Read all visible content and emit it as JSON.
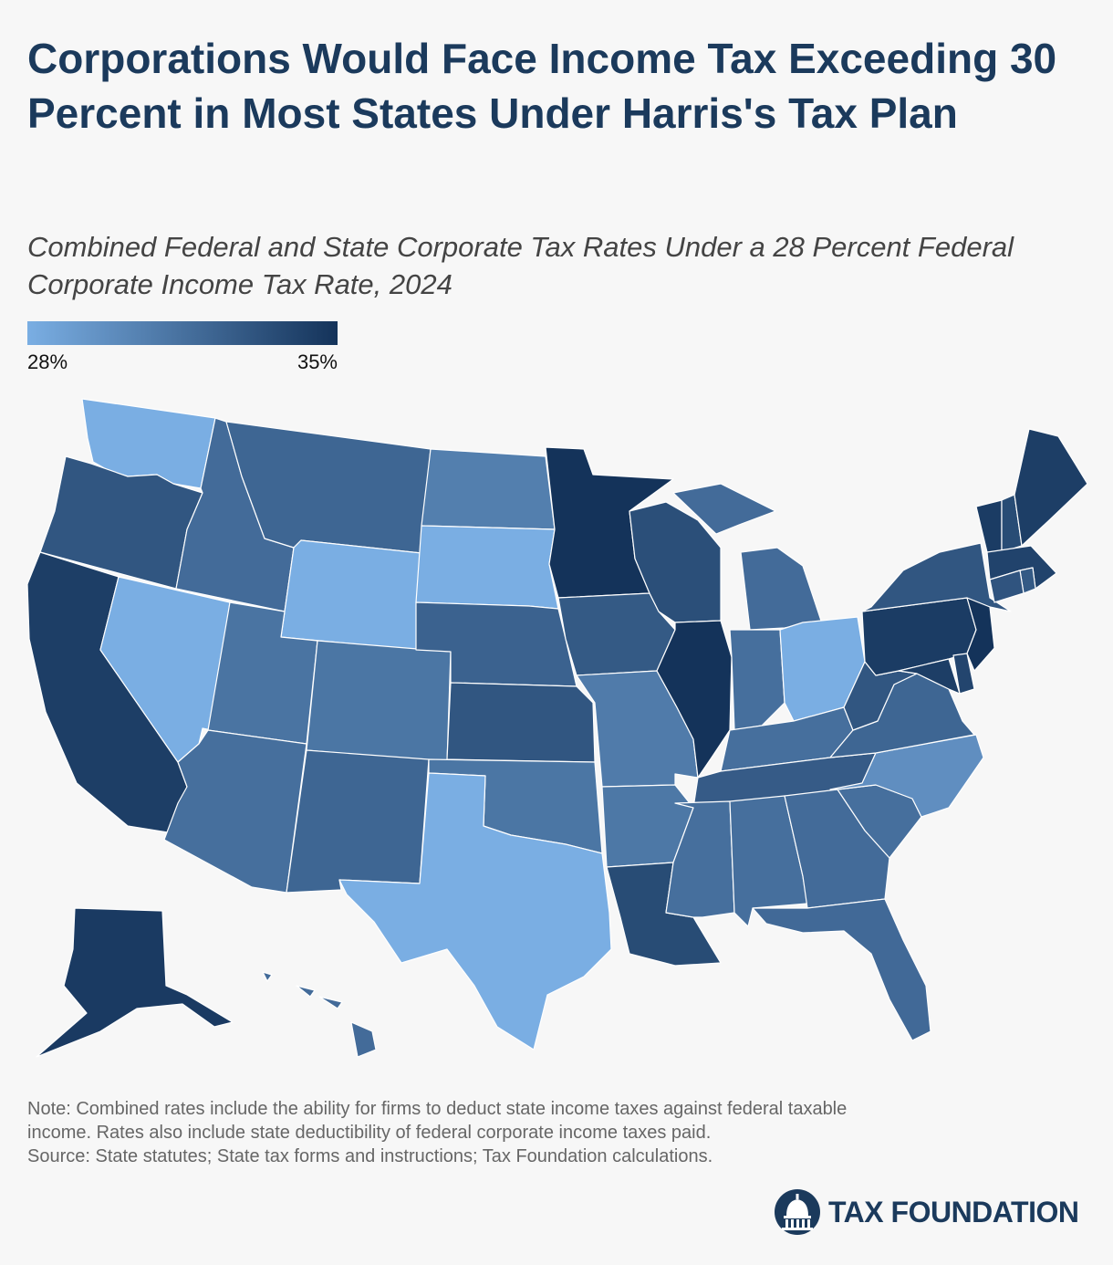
{
  "title": "Corporations Would Face Income Tax Exceeding 30 Percent in Most States Under Harris's Tax Plan",
  "subtitle": "Combined Federal and State Corporate Tax Rates Under a 28 Percent Federal Corporate Income Tax Rate, 2024",
  "legend": {
    "min_label": "28%",
    "max_label": "35%",
    "min_color": "#7aaee3",
    "max_color": "#14335a"
  },
  "note": {
    "line1": "Note: Combined rates include the ability for firms to deduct state income taxes against federal taxable",
    "line2": "income. Rates also include state deductibility of federal corporate income taxes paid.",
    "line3": "Source: State statutes; State tax forms and instructions; Tax Foundation calculations."
  },
  "brand": {
    "name": "TAX FOUNDATION",
    "color": "#1b3a5c"
  },
  "map_data": {
    "type": "choropleth",
    "scale": {
      "min": 28,
      "max": 35,
      "unit": "%"
    },
    "states": [
      {
        "state": "WA",
        "value": 28.0
      },
      {
        "state": "OR",
        "value": 33.0
      },
      {
        "state": "CA",
        "value": 34.4
      },
      {
        "state": "NV",
        "value": 28.0
      },
      {
        "state": "ID",
        "value": 31.8
      },
      {
        "state": "MT",
        "value": 32.1
      },
      {
        "state": "WY",
        "value": 28.0
      },
      {
        "state": "UT",
        "value": 31.3
      },
      {
        "state": "AZ",
        "value": 31.6
      },
      {
        "state": "CO",
        "value": 31.2
      },
      {
        "state": "NM",
        "value": 32.1
      },
      {
        "state": "ND",
        "value": 30.7
      },
      {
        "state": "SD",
        "value": 28.0
      },
      {
        "state": "NE",
        "value": 32.3
      },
      {
        "state": "KS",
        "value": 33.0
      },
      {
        "state": "OK",
        "value": 31.2
      },
      {
        "state": "TX",
        "value": 28.0
      },
      {
        "state": "MN",
        "value": 35.0
      },
      {
        "state": "IA",
        "value": 32.8
      },
      {
        "state": "MO",
        "value": 30.9
      },
      {
        "state": "AR",
        "value": 31.1
      },
      {
        "state": "LA",
        "value": 33.6
      },
      {
        "state": "WI",
        "value": 33.4
      },
      {
        "state": "IL",
        "value": 35.0
      },
      {
        "state": "MI",
        "value": 31.8
      },
      {
        "state": "IN",
        "value": 31.6
      },
      {
        "state": "OH",
        "value": 28.0
      },
      {
        "state": "KY",
        "value": 31.6
      },
      {
        "state": "TN",
        "value": 32.7
      },
      {
        "state": "MS",
        "value": 31.6
      },
      {
        "state": "AL",
        "value": 31.6
      },
      {
        "state": "GA",
        "value": 31.8
      },
      {
        "state": "FL",
        "value": 31.9
      },
      {
        "state": "SC",
        "value": 31.6
      },
      {
        "state": "NC",
        "value": 29.8
      },
      {
        "state": "VA",
        "value": 32.1
      },
      {
        "state": "WV",
        "value": 33.0
      },
      {
        "state": "PA",
        "value": 34.5
      },
      {
        "state": "NY",
        "value": 33.0
      },
      {
        "state": "VT",
        "value": 34.5
      },
      {
        "state": "NH",
        "value": 33.6
      },
      {
        "state": "ME",
        "value": 34.4
      },
      {
        "state": "MA",
        "value": 34.1
      },
      {
        "state": "RI",
        "value": 32.8
      },
      {
        "state": "CT",
        "value": 33.1
      },
      {
        "state": "NJ",
        "value": 35.0
      },
      {
        "state": "DE",
        "value": 34.0
      },
      {
        "state": "MD",
        "value": 34.4
      },
      {
        "state": "AK",
        "value": 34.6
      },
      {
        "state": "HI",
        "value": 31.8
      }
    ]
  }
}
